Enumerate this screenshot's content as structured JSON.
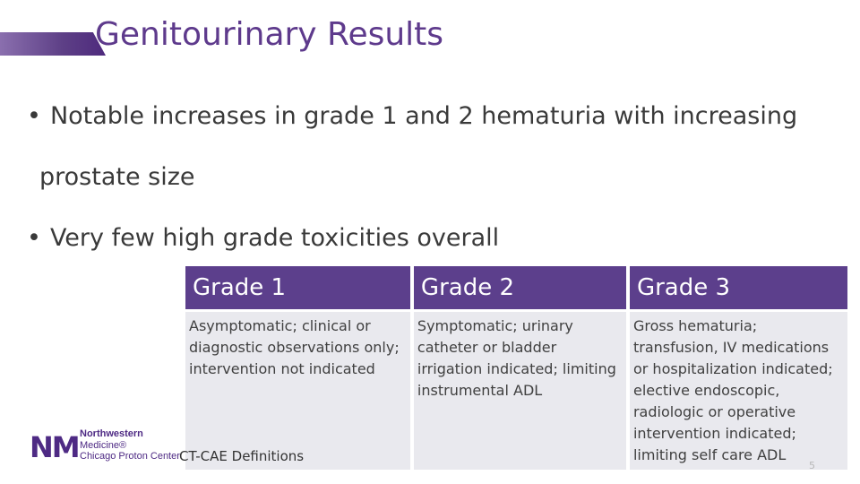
{
  "slide": {
    "title": "Genitourinary Results",
    "bullets": [
      {
        "line1": "Notable increases in grade 1 and 2 hematuria with increasing",
        "line2": "prostate size"
      },
      {
        "line1": "Very few high grade toxicities overall",
        "line2": ""
      }
    ],
    "bullet_glyph": "•"
  },
  "table": {
    "headers": [
      "Grade 1",
      "Grade 2",
      "Grade 3"
    ],
    "cells": [
      "Asymptomatic; clinical or diagnostic observations only; intervention not indicated",
      "Symptomatic; urinary catheter or bladder irrigation indicated; limiting instrumental ADL",
      "Gross hematuria; transfusion, IV medications or hospitalization indicated; elective endoscopic, radiologic or operative intervention indicated; limiting self care ADL"
    ]
  },
  "logo": {
    "mark": "NM",
    "line1": "Northwestern",
    "line2": "Medicine®",
    "line3": "Chicago Proton Center"
  },
  "caption": "CT-CAE Definitions",
  "page_number": "5",
  "colors": {
    "brand_purple": "#5e3a8c",
    "header_fill": "#5c3f8c",
    "cell_fill": "#e9e9ee"
  }
}
